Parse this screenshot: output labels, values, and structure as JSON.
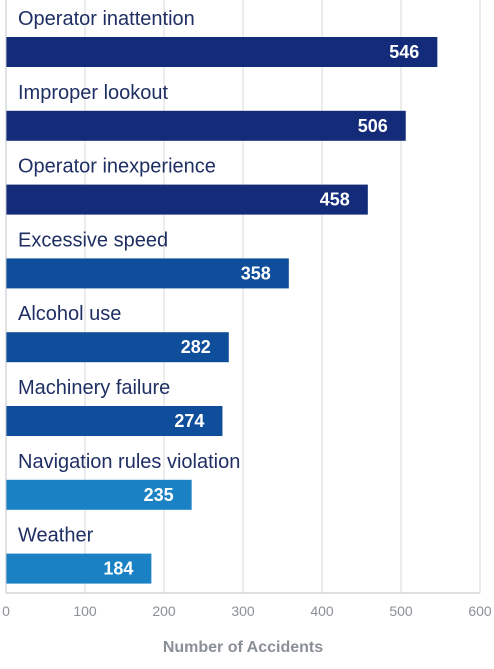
{
  "chart_data": {
    "type": "bar",
    "orientation": "horizontal",
    "title": "",
    "xlabel": "Number of Accidents",
    "ylabel": "",
    "categories": [
      "Operator inattention",
      "Improper lookout",
      "Operator inexperience",
      "Excessive speed",
      "Alcohol use",
      "Machinery failure",
      "Navigation rules violation",
      "Weather"
    ],
    "values": [
      546,
      506,
      458,
      358,
      282,
      274,
      235,
      184
    ],
    "xlim": [
      0,
      600
    ],
    "xticks": [
      0,
      100,
      200,
      300,
      400,
      500,
      600
    ],
    "grid": true,
    "legend": "none",
    "colors": [
      "#132b78",
      "#132b78",
      "#132b78",
      "#0e4e9a",
      "#0e4e9a",
      "#0e4e9a",
      "#1a82c4",
      "#1a82c4"
    ],
    "label_color": "#1f2f63",
    "axis_text_color": "#8a8f98",
    "grid_color": "#d9d9d9"
  }
}
